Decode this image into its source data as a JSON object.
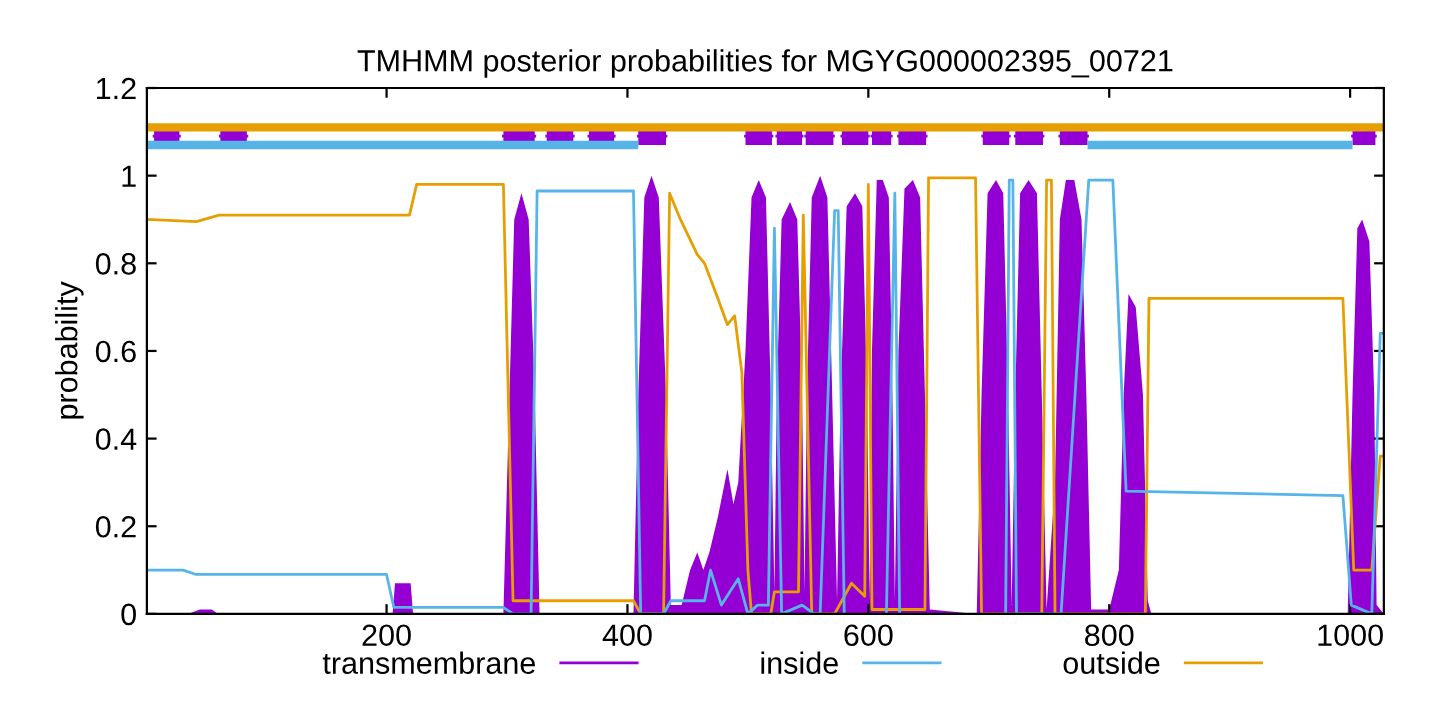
{
  "chart_data": {
    "type": "line",
    "title": "TMHMM posterior probabilities for MGYG000002395_00721",
    "ylabel": "probability",
    "xlim": [
      1,
      1028
    ],
    "ylim": [
      0,
      1.2
    ],
    "xticks": [
      200,
      400,
      600,
      800,
      1000
    ],
    "yticks": [
      0,
      {
        "value": 0.2,
        "label": "0.2"
      },
      {
        "value": 0.4,
        "label": "0.4"
      },
      {
        "value": 0.6,
        "label": "0.6"
      },
      {
        "value": 0.8,
        "label": "0.8"
      },
      1,
      {
        "value": 1.2,
        "label": "1.2"
      }
    ],
    "grid": false,
    "legend": "bottom",
    "series": [
      {
        "name": "transmembrane",
        "type": "area",
        "color": "#9400d3",
        "x": [
          1,
          35,
          45,
          55,
          60,
          205,
          207,
          220,
          222,
          297,
          302,
          306,
          312,
          318,
          323,
          327,
          405,
          409,
          414,
          420,
          426,
          432,
          436,
          445,
          452,
          458,
          463,
          468,
          475,
          483,
          488,
          492,
          498,
          503,
          509,
          515,
          519,
          522,
          524,
          528,
          535,
          541,
          545,
          547,
          549,
          553,
          560,
          566,
          570,
          574,
          577,
          582,
          589,
          595,
          599,
          601,
          603,
          607,
          612,
          617,
          620,
          622,
          625,
          630,
          637,
          643,
          647,
          651,
          690,
          694,
          699,
          706,
          712,
          716,
          719,
          722,
          726,
          733,
          740,
          744,
          748,
          755,
          759,
          764,
          771,
          777,
          781,
          785,
          800,
          808,
          812,
          816,
          822,
          828,
          832,
          835,
          998,
          1002,
          1006,
          1010,
          1016,
          1020,
          1022,
          1028
        ],
        "values": [
          0,
          0,
          0.01,
          0.01,
          0,
          0,
          0.07,
          0.07,
          0,
          0,
          0.5,
          0.9,
          0.96,
          0.9,
          0.5,
          0,
          0,
          0.5,
          0.95,
          1.0,
          0.95,
          0.5,
          0.02,
          0.02,
          0.1,
          0.14,
          0.1,
          0.14,
          0.22,
          0.33,
          0.25,
          0.3,
          0.6,
          0.95,
          0.99,
          0.95,
          0.5,
          0.05,
          0.5,
          0.9,
          0.94,
          0.9,
          0.5,
          0.05,
          0.5,
          0.95,
          1.0,
          0.95,
          0.5,
          0.03,
          0.5,
          0.93,
          0.96,
          0.93,
          0.5,
          0.03,
          0.6,
          0.99,
          0.99,
          0.95,
          0.5,
          0.03,
          0.6,
          0.97,
          0.99,
          0.95,
          0.5,
          0.01,
          0,
          0.5,
          0.96,
          0.99,
          0.96,
          0.5,
          0.02,
          0.5,
          0.96,
          0.99,
          0.96,
          0.5,
          0.01,
          0.3,
          0.9,
          0.99,
          0.99,
          0.9,
          0.5,
          0.01,
          0.01,
          0.1,
          0.5,
          0.73,
          0.7,
          0.5,
          0.03,
          0,
          0,
          0.5,
          0.88,
          0.9,
          0.85,
          0.5,
          0.02,
          0
        ]
      },
      {
        "name": "inside",
        "color": "#56b4e9",
        "x": [
          1,
          31,
          42,
          200,
          206,
          297,
          305,
          320,
          325,
          405,
          411,
          430,
          436,
          464,
          469,
          478,
          492,
          500,
          508,
          517,
          522,
          528,
          545,
          555,
          560,
          572,
          575,
          580,
          603,
          615,
          622,
          626,
          650,
          700,
          714,
          717,
          720,
          723,
          760,
          783,
          803,
          814,
          994,
          1001,
          1018,
          1025,
          1028
        ],
        "values": [
          0.1,
          0.1,
          0.09,
          0.09,
          0.015,
          0.015,
          0,
          0,
          0.965,
          0.965,
          0,
          0,
          0.03,
          0.03,
          0.1,
          0.02,
          0.08,
          0,
          0.02,
          0.02,
          0.88,
          0,
          0.02,
          0,
          0,
          0.92,
          0.92,
          0,
          null,
          0,
          0.96,
          0,
          null,
          null,
          0,
          0.99,
          0.99,
          0,
          0,
          0.99,
          0.99,
          0.28,
          0.27,
          0.02,
          0,
          0.64,
          0.64
        ]
      },
      {
        "name": "outside",
        "color": "#e69f00",
        "x": [
          1,
          42,
          61,
          219,
          225,
          297,
          305,
          405,
          411,
          430,
          435,
          444,
          458,
          464,
          475,
          483,
          489,
          495,
          500,
          503,
          508,
          519,
          522,
          542,
          546,
          553,
          572,
          586,
          597,
          600,
          603,
          647,
          650,
          689,
          694,
          744,
          748,
          752,
          755,
          830,
          833,
          994,
          1003,
          1018,
          1025,
          1028
        ],
        "values": [
          0.9,
          0.895,
          0.91,
          0.91,
          0.98,
          0.98,
          0.03,
          0.03,
          0,
          0,
          0.96,
          0.9,
          0.82,
          0.8,
          0.72,
          0.66,
          0.68,
          0.55,
          0.1,
          0,
          0,
          0,
          0.05,
          0.05,
          0.91,
          0,
          0,
          0.07,
          0.04,
          0.98,
          0.01,
          0.01,
          0.995,
          0.995,
          0,
          0,
          0.99,
          0.99,
          0,
          0,
          0.72,
          0.72,
          0.1,
          0.1,
          0.36,
          0.36
        ]
      },
      {
        "color": "#e69f00",
        "x": [
          1,
          1028
        ],
        "values": [
          1.11,
          1.11
        ]
      },
      {
        "color": "#56b4e9",
        "x": [
          1,
          409,
          410,
          782,
          1002
        ],
        "values": [
          1.07,
          1.07,
          null,
          1.07,
          1.07
        ]
      },
      {
        "color": "#9400d3",
        "x": [
          7,
          28,
          29,
          62,
          84,
          85,
          297,
          323,
          324,
          333,
          355,
          356,
          368,
          389,
          390,
          409,
          432,
          433,
          498,
          520,
          521,
          524,
          545,
          546,
          548,
          571,
          572,
          578,
          600,
          601,
          603,
          619,
          620,
          625,
          648,
          649,
          695,
          717,
          718,
          722,
          745,
          746,
          759,
          782,
          783,
          1002,
          1021
        ],
        "values": [
          1.09,
          1.09,
          null,
          1.09,
          1.09,
          null,
          1.09,
          1.09,
          null,
          1.09,
          1.09,
          null,
          1.09,
          1.09,
          null,
          1.09,
          1.09,
          null,
          1.09,
          1.09,
          null,
          1.09,
          1.09,
          null,
          1.09,
          1.09,
          null,
          1.09,
          1.09,
          null,
          1.09,
          1.09,
          null,
          1.09,
          1.09,
          null,
          1.09,
          1.09,
          null,
          1.09,
          1.09,
          null,
          1.09,
          1.09,
          null,
          1.09,
          1.09
        ],
        "lower": [
          1.07,
          1.07,
          null,
          1.07,
          1.07,
          null,
          1.07,
          1.07,
          null,
          1.07,
          1.07,
          null,
          1.07,
          1.07,
          null,
          1.07,
          1.07,
          null,
          1.07,
          1.07,
          null,
          1.07,
          1.07,
          null,
          1.07,
          1.07,
          null,
          1.07,
          1.07,
          null,
          1.07,
          1.07,
          null,
          1.07,
          1.07,
          null,
          1.07,
          1.07,
          null,
          1.07,
          1.07,
          null,
          1.07,
          1.07,
          null,
          1.07,
          1.07
        ],
        "upper": [
          1.11,
          1.11,
          null,
          1.11,
          1.11,
          null,
          1.11,
          1.11,
          null,
          1.11,
          1.11,
          null,
          1.11,
          1.11,
          null,
          1.11,
          1.11,
          null,
          1.11,
          1.11,
          null,
          1.11,
          1.11,
          null,
          1.11,
          1.11,
          null,
          1.11,
          1.11,
          null,
          1.11,
          1.11,
          null,
          1.11,
          1.11,
          null,
          1.11,
          1.11,
          null,
          1.11,
          1.11,
          null,
          1.11,
          1.11,
          null,
          1.11,
          1.11
        ]
      }
    ]
  }
}
